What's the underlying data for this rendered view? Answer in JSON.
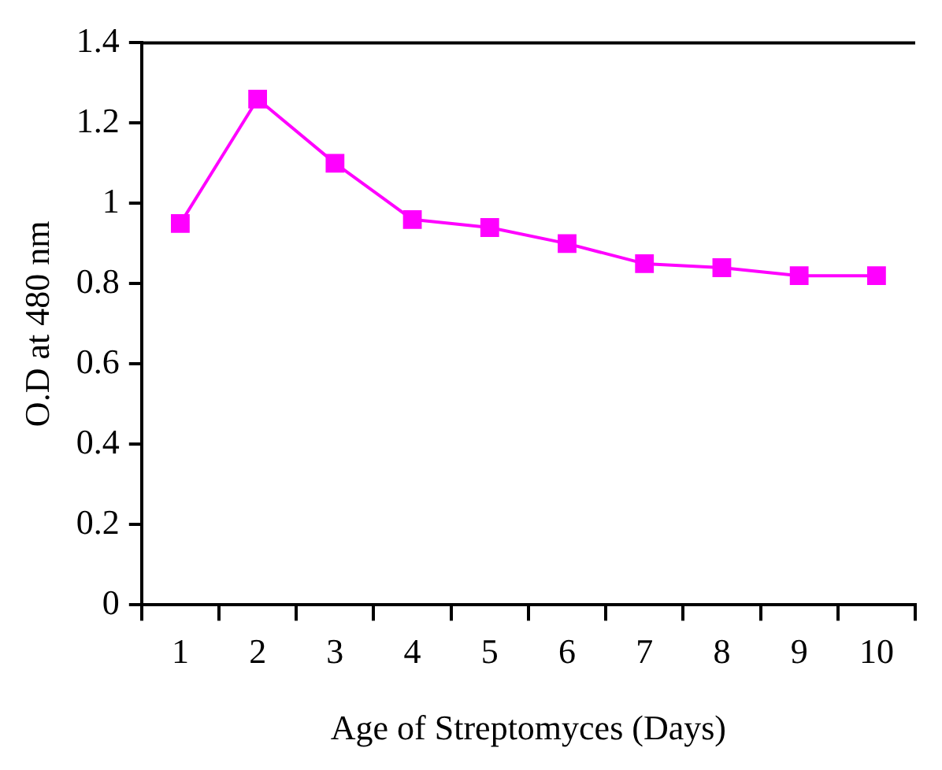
{
  "chart_data": {
    "type": "line",
    "xlabel": "Age of Streptomyces (Days)",
    "ylabel": "O.D at 480 nm",
    "categories": [
      "1",
      "2",
      "3",
      "4",
      "5",
      "6",
      "7",
      "8",
      "9",
      "10"
    ],
    "series": [
      {
        "color": "#ff00ff",
        "values": [
          0.95,
          1.26,
          1.1,
          0.96,
          0.94,
          0.9,
          0.85,
          0.84,
          0.82,
          0.82
        ]
      }
    ],
    "ylim": [
      0,
      1.4
    ],
    "yticks": [
      0,
      0.2,
      0.4,
      0.6,
      0.8,
      1,
      1.2,
      1.4
    ],
    "grid": false,
    "legend": false,
    "marker": "square",
    "line_style": "solid"
  }
}
